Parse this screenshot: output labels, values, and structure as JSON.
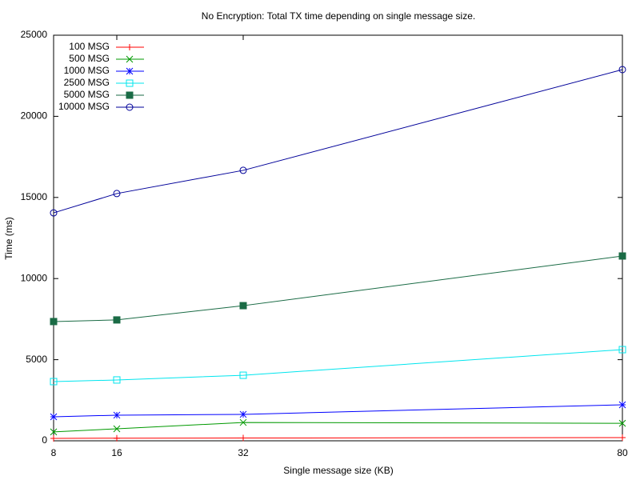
{
  "chart_data": {
    "type": "line",
    "title": "No Encryption: Total TX time depending on single message size.",
    "x_label": "Single message size (KB)",
    "y_label": "Time (ms)",
    "x": [
      8,
      16,
      32,
      80
    ],
    "xlim": [
      8,
      80
    ],
    "xticks": [
      8,
      16,
      32,
      80
    ],
    "ylim": [
      0,
      25000
    ],
    "yticks": [
      0,
      5000,
      10000,
      15000,
      20000,
      25000
    ],
    "grid": false,
    "legend": "top-left",
    "series": [
      {
        "name": "100 MSG",
        "color": "#ff0000",
        "marker": "plus",
        "values": [
          150,
          160,
          170,
          200
        ]
      },
      {
        "name": "500 MSG",
        "color": "#009900",
        "marker": "cross",
        "values": [
          550,
          740,
          1130,
          1080
        ]
      },
      {
        "name": "1000 MSG",
        "color": "#0000ff",
        "marker": "star",
        "values": [
          1480,
          1580,
          1630,
          2220
        ]
      },
      {
        "name": "2500 MSG",
        "color": "#00e5ee",
        "marker": "square",
        "values": [
          3650,
          3750,
          4040,
          5620
        ]
      },
      {
        "name": "5000 MSG",
        "color": "#1a6b45",
        "marker": "filled-square",
        "values": [
          7350,
          7450,
          8330,
          11390
        ]
      },
      {
        "name": "10000 MSG",
        "color": "#000099",
        "marker": "circle",
        "values": [
          14050,
          15240,
          16670,
          22880
        ]
      }
    ]
  }
}
